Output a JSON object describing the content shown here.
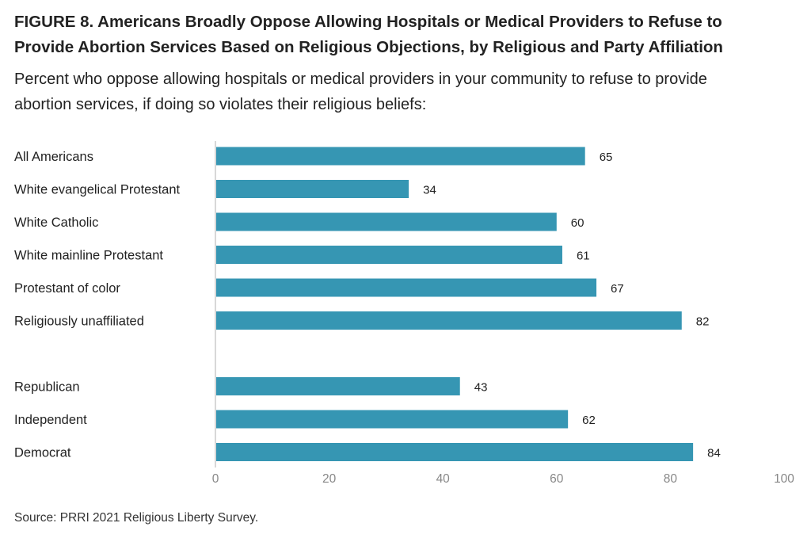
{
  "title_line1": "FIGURE 8. Americans Broadly Oppose Allowing Hospitals or Medical Providers to Refuse to",
  "title_line2": "Provide Abortion Services Based on Religious Objections, by Religious and Party Affiliation",
  "subtitle_line1": "Percent who oppose allowing hospitals or medical providers in your community to refuse to provide",
  "subtitle_line2": "abortion services, if doing so violates their religious beliefs:",
  "source": "Source: PRRI 2021 Religious Liberty Survey.",
  "bar_color": "#3696b3",
  "chart_data": {
    "type": "bar",
    "orientation": "horizontal",
    "groups": [
      {
        "categories": [
          "All Americans",
          "White evangelical Protestant",
          "White Catholic",
          "White mainline Protestant",
          "Protestant of color",
          "Religiously unaffiliated"
        ],
        "values": [
          65,
          34,
          60,
          61,
          67,
          82
        ]
      },
      {
        "categories": [
          "Republican",
          "Independent",
          "Democrat"
        ],
        "values": [
          43,
          62,
          84
        ]
      }
    ],
    "xlim": [
      0,
      100
    ],
    "xticks": [
      "0",
      "20",
      "40",
      "60",
      "80",
      "100"
    ],
    "grid": false
  }
}
